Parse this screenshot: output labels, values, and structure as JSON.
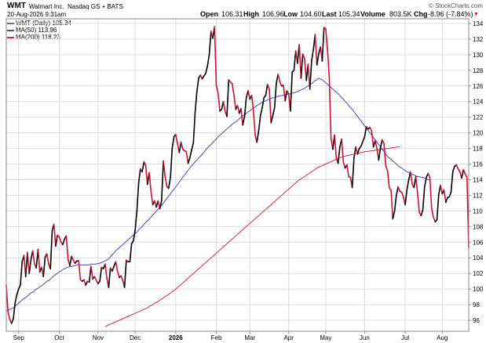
{
  "header": {
    "symbol": "WMT",
    "company": "Walmart Inc.",
    "exchange": "Nasdaq GS + BATS",
    "datetime": "20-Aug-2026 9:31am",
    "open_label": "Open",
    "open_value": "106.31",
    "high_label": "High",
    "high_value": "106.96",
    "low_label": "Low",
    "low_value": "104.60",
    "last_label": "Last",
    "last_value": "105.34",
    "volume_label": "Volume",
    "volume_value": "803.5K",
    "chg_label": "Chg",
    "chg_value": "-8.96 (-7.84%)",
    "chg_arrow": "▼",
    "watermark": "© StockCharts.com"
  },
  "colors": {
    "up": "#000000",
    "down": "#cc1133",
    "ma50": "#4848b0",
    "ma200": "#d8284a",
    "grid": "#dcdcdc"
  },
  "chart_data": {
    "type": "line",
    "legend": [
      {
        "label": "WMT (Daily) 105.34",
        "color": "#000000"
      },
      {
        "label": "MA(50) 113.96",
        "color": "#4848b0"
      },
      {
        "label": "MA(200) 118.23",
        "color": "#d8284a"
      }
    ],
    "ylim": [
      94.6,
      134.6
    ],
    "yticks": [
      96,
      98,
      100,
      102,
      104,
      106,
      108,
      110,
      112,
      114,
      116,
      118,
      120,
      122,
      124,
      126,
      128,
      130,
      132,
      134
    ],
    "xticks": [
      {
        "label": "Sep",
        "i": 7,
        "bold": false
      },
      {
        "label": "Oct",
        "i": 30,
        "bold": false
      },
      {
        "label": "Nov",
        "i": 52,
        "bold": false
      },
      {
        "label": "Dec",
        "i": 73,
        "bold": false
      },
      {
        "label": "2026",
        "i": 96,
        "bold": true
      },
      {
        "label": "Feb",
        "i": 119,
        "bold": false
      },
      {
        "label": "Mar",
        "i": 138,
        "bold": false
      },
      {
        "label": "Apr",
        "i": 160,
        "bold": false
      },
      {
        "label": "May",
        "i": 181,
        "bold": false
      },
      {
        "label": "Jun",
        "i": 203,
        "bold": false
      },
      {
        "label": "Jul",
        "i": 226,
        "bold": false
      },
      {
        "label": "Aug",
        "i": 247,
        "bold": false
      }
    ],
    "price": [
      100.5,
      97.1,
      96.1,
      95.6,
      96.2,
      98.2,
      99.3,
      100.0,
      100.5,
      103.5,
      104.3,
      101.6,
      104.7,
      102.0,
      103.8,
      104.9,
      103.2,
      102.7,
      105.1,
      102.2,
      102.8,
      101.6,
      104.1,
      104.5,
      103.2,
      102.6,
      107.5,
      108.3,
      105.5,
      106.9,
      106.7,
      106.0,
      105.7,
      106.4,
      106.8,
      103.8,
      103.0,
      104.2,
      103.7,
      103.3,
      103.6,
      103.6,
      101.2,
      101.0,
      101.2,
      100.5,
      101.0,
      100.9,
      102.9,
      101.3,
      101.6,
      101.1,
      100.7,
      101.0,
      102.8,
      102.6,
      103.2,
      101.4,
      100.2,
      102.7,
      102.3,
      102.9,
      103.5,
      102.3,
      101.5,
      101.7,
      101.1,
      100.2,
      103.7,
      103.5,
      103.5,
      105.8,
      106.2,
      107.5,
      110.0,
      113.6,
      115.4,
      115.0,
      116.3,
      115.8,
      113.4,
      114.9,
      112.5,
      110.8,
      111.3,
      110.5,
      111.3,
      110.3,
      111.3,
      116.4,
      114.4,
      113.1,
      112.9,
      114.3,
      118.0,
      119.5,
      119.8,
      118.6,
      117.5,
      118.8,
      117.9,
      117.7,
      117.6,
      116.1,
      116.8,
      117.8,
      118.7,
      122.6,
      125.3,
      127.0,
      127.4,
      126.9,
      127.3,
      127.6,
      128.6,
      130.0,
      133.0,
      132.1,
      133.6,
      126.1,
      125.1,
      122.8,
      123.0,
      124.0,
      122.7,
      122.1,
      126.8,
      126.5,
      126.3,
      124.8,
      123.0,
      123.5,
      122.5,
      123.1,
      121.0,
      122.1,
      124.5,
      125.4,
      124.3,
      124.8,
      122.9,
      119.7,
      118.8,
      120.3,
      122.2,
      123.2,
      124.5,
      124.8,
      126.2,
      125.6,
      121.3,
      122.2,
      123.2,
      126.4,
      127.5,
      126.5,
      126.0,
      126.1,
      124.1,
      125.4,
      125.0,
      122.8,
      127.8,
      128.0,
      130.5,
      128.9,
      131.3,
      127.0,
      130.1,
      129.5,
      126.7,
      128.8,
      125.6,
      129.2,
      130.7,
      132.6,
      128.7,
      130.1,
      131.0,
      129.2,
      133.5,
      133.3,
      130.6,
      127.1,
      119.3,
      117.9,
      119.7,
      116.7,
      116.1,
      118.2,
      119.2,
      116.2,
      115.5,
      115.9,
      114.4,
      114.3,
      113.0,
      116.8,
      118.2,
      117.3,
      118.0,
      118.3,
      118.9,
      119.5,
      120.8,
      120.5,
      120.7,
      120.2,
      118.2,
      119.0,
      118.0,
      116.5,
      118.1,
      119.1,
      118.6,
      115.8,
      115.1,
      113.0,
      112.6,
      109.0,
      110.0,
      112.0,
      113.1,
      112.5,
      112.4,
      111.8,
      110.8,
      112.7,
      114.0,
      115.0,
      113.4,
      113.0,
      114.4,
      112.3,
      109.8,
      109.4,
      110.1,
      113.1,
      114.3,
      114.8,
      114.3,
      110.3,
      109.2,
      108.6,
      108.9,
      112.1,
      113.3,
      112.2,
      112.7,
      111.1,
      111.7,
      111.8,
      112.4,
      115.1,
      115.7,
      115.9,
      115.4,
      115.0,
      114.2,
      115.3,
      114.7,
      114.3,
      105.3
    ],
    "ma50": [
      97.2,
      97.3,
      97.4,
      97.5,
      97.6,
      97.8,
      98.0,
      98.2,
      98.4,
      98.6,
      98.8,
      98.9,
      99.1,
      99.3,
      99.5,
      99.6,
      99.8,
      100.0,
      100.1,
      100.3,
      100.4,
      100.6,
      100.8,
      101.0,
      101.1,
      101.3,
      101.5,
      101.7,
      101.9,
      102.0,
      102.2,
      102.3,
      102.5,
      102.6,
      102.7,
      102.8,
      102.9,
      102.9,
      103.0,
      103.0,
      103.1,
      103.1,
      103.1,
      103.1,
      103.1,
      103.1,
      103.1,
      103.1,
      103.2,
      103.2,
      103.2,
      103.2,
      103.3,
      103.3,
      103.4,
      103.5,
      103.6,
      103.7,
      103.9,
      104.1,
      104.4,
      104.6,
      104.9,
      105.1,
      105.3,
      105.5,
      105.7,
      105.9,
      106.1,
      106.3,
      106.5,
      106.7,
      106.9,
      107.1,
      107.3,
      107.6,
      107.8,
      108.0,
      108.3,
      108.5,
      108.7,
      109.0,
      109.2,
      109.5,
      109.7,
      110.0,
      110.2,
      110.5,
      110.7,
      111.0,
      111.3,
      111.6,
      111.9,
      112.2,
      112.5,
      112.8,
      113.1,
      113.4,
      113.7,
      114.0,
      114.3,
      114.6,
      114.9,
      115.2,
      115.5,
      115.8,
      116.0,
      116.3,
      116.5,
      116.8,
      117.0,
      117.3,
      117.5,
      117.8,
      118.1,
      118.3,
      118.5,
      118.8,
      119.0,
      119.2,
      119.5,
      119.7,
      119.9,
      120.1,
      120.3,
      120.5,
      120.7,
      120.9,
      121.1,
      121.3,
      121.4,
      121.6,
      121.8,
      122.0,
      122.2,
      122.3,
      122.5,
      122.7,
      122.8,
      123.0,
      123.2,
      123.3,
      123.5,
      123.6,
      123.8,
      123.9,
      124.0,
      124.1,
      124.2,
      124.3,
      124.4,
      124.5,
      124.5,
      124.6,
      124.7,
      124.7,
      124.8,
      124.8,
      124.9,
      124.9,
      125.0,
      125.0,
      125.1,
      125.1,
      125.2,
      125.3,
      125.4,
      125.5,
      125.6,
      125.7,
      125.9,
      126.0,
      126.2,
      126.3,
      126.5,
      126.7,
      126.8,
      127.0,
      126.9,
      126.8,
      126.6,
      126.4,
      126.2,
      126.0,
      125.8,
      125.6,
      125.4,
      125.2,
      125.0,
      124.8,
      124.5,
      124.3,
      124.0,
      123.8,
      123.5,
      123.2,
      123.0,
      122.7,
      122.4,
      122.1,
      121.8,
      121.5,
      121.2,
      120.9,
      120.6,
      120.3,
      120.0,
      119.7,
      119.4,
      119.1,
      118.8,
      118.5,
      118.2,
      117.9,
      117.6,
      117.3,
      117.0,
      116.8,
      116.6,
      116.4,
      116.2,
      116.0,
      115.8,
      115.6,
      115.5,
      115.3,
      115.2,
      115.0,
      114.9,
      114.8,
      114.7,
      114.6,
      114.5,
      114.4,
      114.4,
      114.3,
      114.3,
      114.2,
      114.1,
      114.0,
      113.96
    ],
    "ma200": [
      null,
      null,
      null,
      null,
      null,
      null,
      null,
      null,
      null,
      null,
      null,
      null,
      null,
      null,
      null,
      null,
      null,
      null,
      null,
      null,
      null,
      null,
      null,
      null,
      null,
      null,
      null,
      null,
      null,
      null,
      null,
      null,
      null,
      null,
      null,
      null,
      null,
      null,
      null,
      null,
      null,
      null,
      null,
      null,
      null,
      null,
      null,
      null,
      null,
      null,
      null,
      null,
      null,
      null,
      null,
      null,
      95.2,
      95.3,
      95.4,
      95.5,
      95.6,
      95.7,
      95.8,
      95.9,
      96.0,
      96.1,
      96.2,
      96.3,
      96.4,
      96.5,
      96.6,
      96.7,
      96.8,
      96.9,
      97.0,
      97.1,
      97.2,
      97.3,
      97.4,
      97.5,
      97.6,
      97.8,
      97.9,
      98.0,
      98.2,
      98.3,
      98.4,
      98.6,
      98.7,
      98.9,
      99.0,
      99.2,
      99.3,
      99.5,
      99.7,
      99.8,
      100.0,
      100.2,
      100.4,
      100.6,
      100.8,
      101.0,
      101.2,
      101.4,
      101.6,
      101.8,
      102.0,
      102.2,
      102.4,
      102.6,
      102.8,
      103.0,
      103.2,
      103.4,
      103.6,
      103.8,
      104.0,
      104.2,
      104.4,
      104.6,
      104.8,
      105.0,
      105.2,
      105.4,
      105.6,
      105.8,
      106.0,
      106.2,
      106.4,
      106.6,
      106.8,
      107.0,
      107.2,
      107.4,
      107.6,
      107.8,
      108.0,
      108.2,
      108.4,
      108.6,
      108.8,
      109.0,
      109.2,
      109.4,
      109.6,
      109.8,
      110.0,
      110.2,
      110.4,
      110.6,
      110.8,
      111.0,
      111.2,
      111.4,
      111.6,
      111.8,
      112.0,
      112.2,
      112.4,
      112.6,
      112.8,
      113.0,
      113.2,
      113.4,
      113.6,
      113.8,
      114.0,
      114.1,
      114.3,
      114.4,
      114.6,
      114.7,
      114.9,
      115.0,
      115.2,
      115.3,
      115.5,
      115.6,
      115.7,
      115.8,
      115.9,
      116.0,
      116.1,
      116.2,
      116.3,
      116.4,
      116.5,
      116.6,
      116.7,
      116.8,
      116.9,
      117.0,
      117.0,
      117.1,
      117.1,
      117.2,
      117.2,
      117.3,
      117.3,
      117.4,
      117.4,
      117.5,
      117.5,
      117.6,
      117.6,
      117.6,
      117.7,
      117.7,
      117.7,
      117.8,
      117.8,
      117.8,
      117.9,
      117.9,
      117.9,
      118.0,
      118.0,
      118.0,
      118.1,
      118.1,
      118.1,
      118.2,
      118.2,
      118.23
    ]
  }
}
